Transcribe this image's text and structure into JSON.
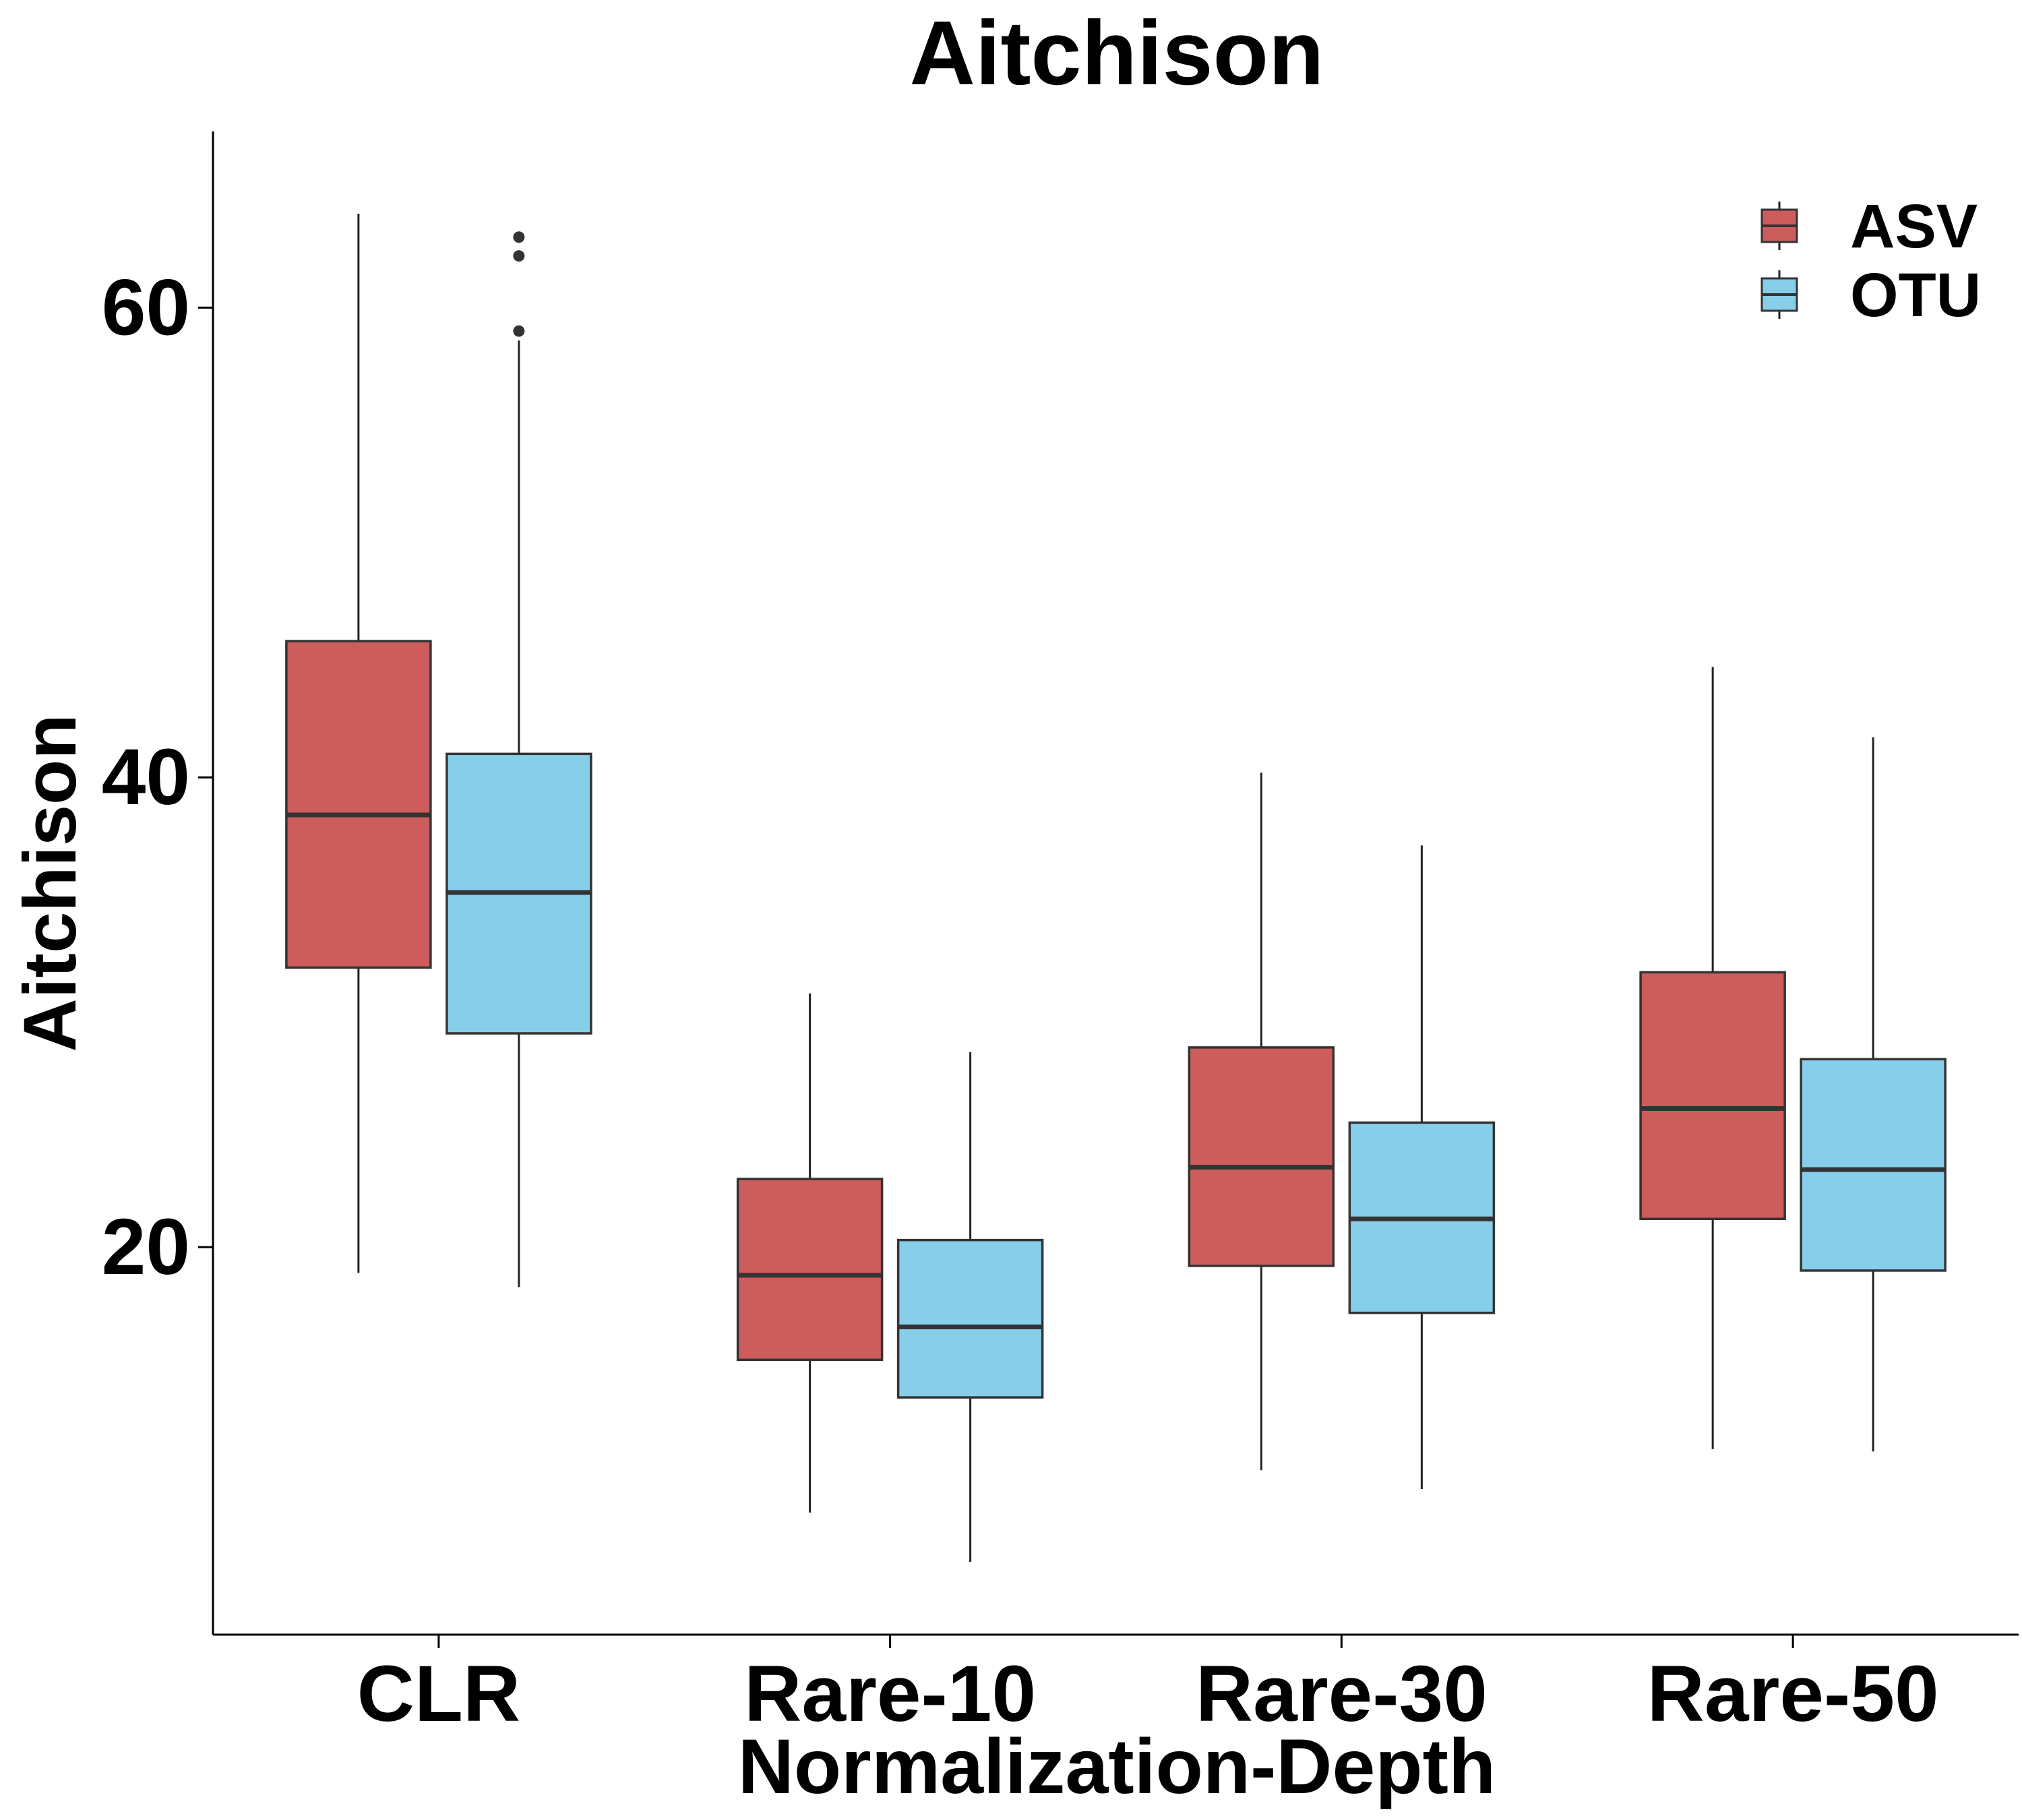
{
  "chart_data": {
    "type": "box",
    "title": "Aitchison",
    "xlabel": "Normalization-Depth",
    "ylabel": "Aitchison",
    "categories": [
      "CLR",
      "Rare-10",
      "Rare-30",
      "Rare-50"
    ],
    "ylim": [
      3.5,
      67.5
    ],
    "yticks": [
      20,
      40,
      60
    ],
    "grid": false,
    "legend_position": "top-right",
    "series": [
      {
        "name": "ASV",
        "color": "#cd5c5c",
        "boxes": [
          {
            "min": 18.9,
            "q1": 31.9,
            "median": 38.4,
            "q3": 45.8,
            "max": 64.0,
            "outliers": []
          },
          {
            "min": 8.7,
            "q1": 15.2,
            "median": 18.8,
            "q3": 22.9,
            "max": 30.8,
            "outliers": []
          },
          {
            "min": 10.5,
            "q1": 19.2,
            "median": 23.4,
            "q3": 28.5,
            "max": 40.2,
            "outliers": []
          },
          {
            "min": 11.4,
            "q1": 21.2,
            "median": 25.9,
            "q3": 31.7,
            "max": 44.7,
            "outliers": []
          }
        ]
      },
      {
        "name": "OTU",
        "color": "#87ceeb",
        "boxes": [
          {
            "min": 18.3,
            "q1": 29.1,
            "median": 35.1,
            "q3": 41.0,
            "max": 58.6,
            "outliers": [
              59.0,
              62.2,
              63.0
            ]
          },
          {
            "min": 6.6,
            "q1": 13.6,
            "median": 16.6,
            "q3": 20.3,
            "max": 28.3,
            "outliers": []
          },
          {
            "min": 9.7,
            "q1": 17.2,
            "median": 21.2,
            "q3": 25.3,
            "max": 37.1,
            "outliers": []
          },
          {
            "min": 11.3,
            "q1": 19.0,
            "median": 23.3,
            "q3": 28.0,
            "max": 41.7,
            "outliers": []
          }
        ]
      }
    ]
  }
}
